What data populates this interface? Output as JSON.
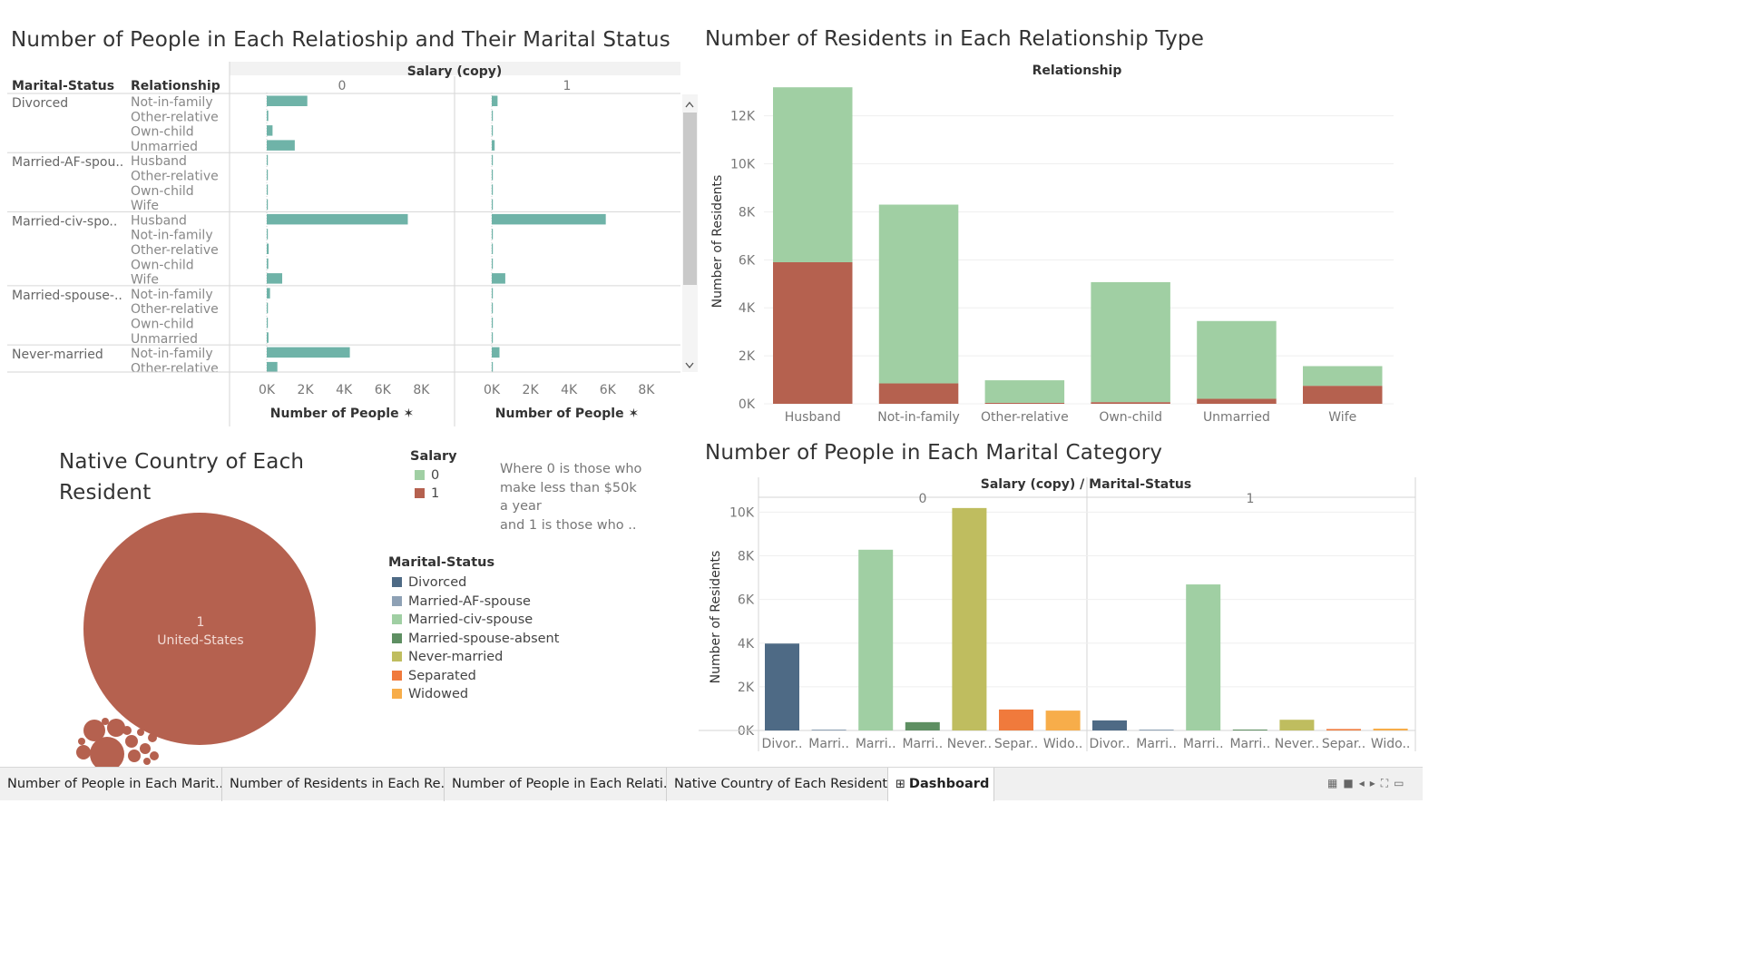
{
  "colors": {
    "salary0": "#a0cfa3",
    "salary1": "#b5614f",
    "teal": "#6fb3a8"
  },
  "titles": {
    "tl": "Number of People in Each Relatioship and Their Marital Status",
    "tr": "Number of Residents in Each Relationship Type",
    "bl": "Native Country of Each Resident",
    "br": "Number of People in Each Marital Category"
  },
  "legend": {
    "salary_title": "Salary",
    "salary_items": [
      {
        "label": "0",
        "color": "#a0cfa3"
      },
      {
        "label": "1",
        "color": "#b5614f"
      }
    ],
    "note": [
      "Where 0 is those who",
      "make less than $50k",
      "a year",
      "and 1 is those who .."
    ],
    "marital_title": "Marital-Status",
    "marital_items": [
      {
        "label": "Divorced",
        "color": "#4e6a85"
      },
      {
        "label": "Married-AF-spouse",
        "color": "#8ea1b5"
      },
      {
        "label": "Married-civ-spouse",
        "color": "#a0cfa3"
      },
      {
        "label": "Married-spouse-absent",
        "color": "#5e8f62"
      },
      {
        "label": "Never-married",
        "color": "#bfbd5f"
      },
      {
        "label": "Separated",
        "color": "#f07a3c"
      },
      {
        "label": "Widowed",
        "color": "#f7ad4a"
      }
    ]
  },
  "tabs": [
    {
      "label": "Number of People in Each Marit..."
    },
    {
      "label": "Number of Residents in Each Re..."
    },
    {
      "label": "Number of People in Each Relati..."
    },
    {
      "label": "Native Country of Each Resident"
    },
    {
      "label": "Dashboard 1"
    }
  ],
  "chart_data": [
    {
      "type": "bar",
      "orientation": "horizontal",
      "title": "Number of People in Each Relatioship and Their Marital Status",
      "column_header": "Salary (copy)",
      "row_headers": [
        "Marital-Status",
        "Relationship"
      ],
      "panels": [
        "0",
        "1"
      ],
      "xlabel": "Number of People",
      "xticks": [
        "0K",
        "2K",
        "4K",
        "6K",
        "8K"
      ],
      "xlim": [
        0,
        10000
      ],
      "groups": [
        {
          "marital": "Divorced",
          "rows": [
            {
              "rel": "Not-in-family",
              "values": [
                2100,
                300
              ]
            },
            {
              "rel": "Other-relative",
              "values": [
                80,
                20
              ]
            },
            {
              "rel": "Own-child",
              "values": [
                300,
                30
              ]
            },
            {
              "rel": "Unmarried",
              "values": [
                1450,
                150
              ]
            }
          ]
        },
        {
          "marital": "Married-AF-spou..",
          "rows": [
            {
              "rel": "Husband",
              "values": [
                10,
                5
              ]
            },
            {
              "rel": "Other-relative",
              "values": [
                1,
                1
              ]
            },
            {
              "rel": "Own-child",
              "values": [
                1,
                1
              ]
            },
            {
              "rel": "Wife",
              "values": [
                5,
                5
              ]
            }
          ]
        },
        {
          "marital": "Married-civ-spo..",
          "rows": [
            {
              "rel": "Husband",
              "values": [
                7300,
                5900
              ]
            },
            {
              "rel": "Not-in-family",
              "values": [
                15,
                5
              ]
            },
            {
              "rel": "Other-relative",
              "values": [
                100,
                20
              ]
            },
            {
              "rel": "Own-child",
              "values": [
                80,
                10
              ]
            },
            {
              "rel": "Wife",
              "values": [
                800,
                700
              ]
            }
          ]
        },
        {
          "marital": "Married-spouse-..",
          "rows": [
            {
              "rel": "Not-in-family",
              "values": [
                170,
                15
              ]
            },
            {
              "rel": "Other-relative",
              "values": [
                60,
                5
              ]
            },
            {
              "rel": "Own-child",
              "values": [
                30,
                5
              ]
            },
            {
              "rel": "Unmarried",
              "values": [
                90,
                10
              ]
            }
          ]
        },
        {
          "marital": "Never-married",
          "rows": [
            {
              "rel": "Not-in-family",
              "values": [
                4300,
                400
              ]
            },
            {
              "rel": "Other-relative",
              "values": [
                550,
                20
              ]
            }
          ]
        }
      ]
    },
    {
      "type": "bar",
      "stacked": true,
      "title": "Number of Residents in Each Relationship Type",
      "column_header": "Relationship",
      "ylabel": "Number of Residents",
      "yticks": [
        "0K",
        "2K",
        "4K",
        "6K",
        "8K",
        "10K",
        "12K"
      ],
      "ylim": [
        0,
        13500
      ],
      "categories": [
        "Husband",
        "Not-in-family",
        "Other-relative",
        "Own-child",
        "Unmarried",
        "Wife"
      ],
      "series": [
        {
          "name": "1",
          "values": [
            5900,
            850,
            40,
            70,
            210,
            750
          ]
        },
        {
          "name": "0",
          "values": [
            7290,
            7450,
            940,
            5000,
            3240,
            820
          ]
        }
      ]
    },
    {
      "type": "bubble",
      "title": "Native Country of Each Resident",
      "bubbles": [
        {
          "label": "1",
          "sublabel": "United-States"
        }
      ]
    },
    {
      "type": "bar",
      "title": "Number of People in Each Marital Category",
      "column_header": "Salary (copy)  /  Marital-Status",
      "panels": [
        "0",
        "1"
      ],
      "ylabel": "Number of Residents",
      "yticks": [
        "0K",
        "2K",
        "4K",
        "6K",
        "8K",
        "10K"
      ],
      "ylim": [
        0,
        10600
      ],
      "categories": [
        "Divor..",
        "Marri..",
        "Marri..",
        "Marri..",
        "Never..",
        "Separ..",
        "Wido.."
      ],
      "series": [
        {
          "name": "0",
          "values": [
            3980,
            13,
            8280,
            380,
            10190,
            960,
            910
          ]
        },
        {
          "name": "1",
          "values": [
            460,
            10,
            6690,
            35,
            490,
            66,
            85
          ]
        }
      ]
    }
  ]
}
